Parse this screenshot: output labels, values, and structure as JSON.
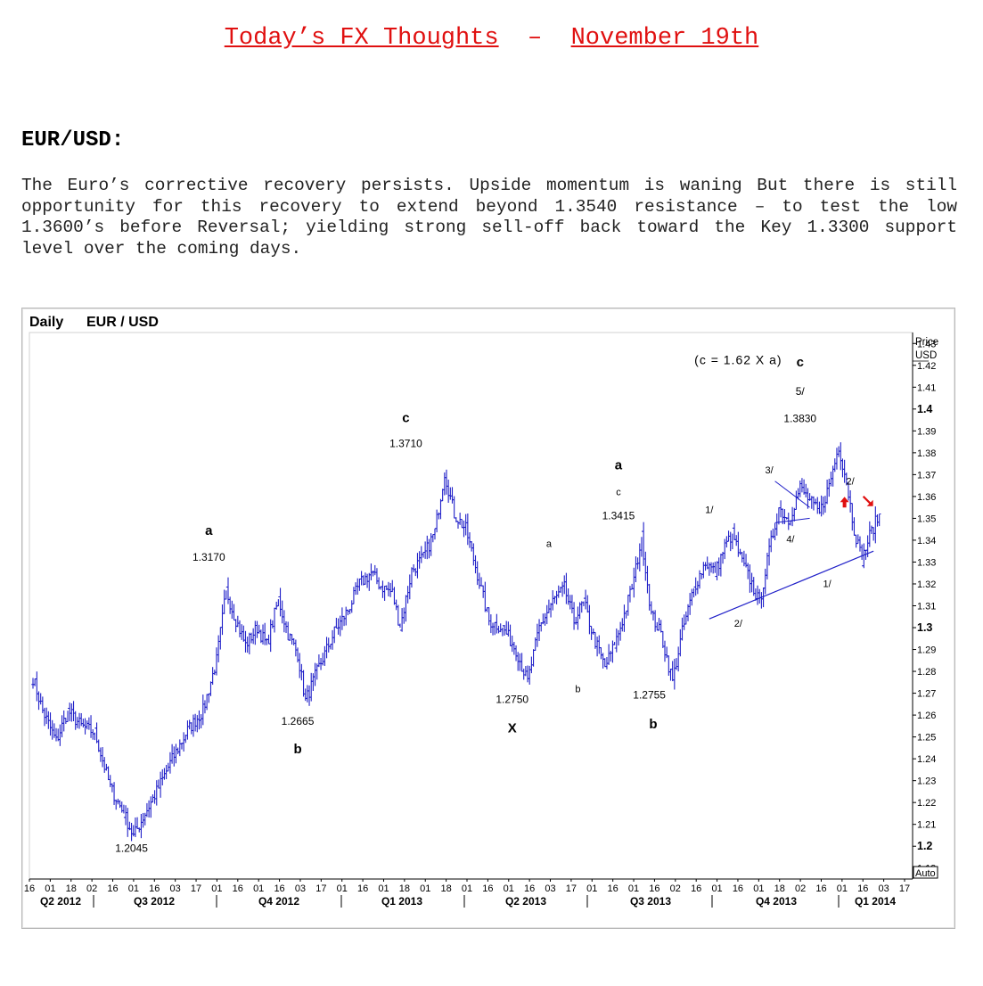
{
  "headline": {
    "left": "Today’s FX Thoughts",
    "separator": "–",
    "right": "November 19th"
  },
  "section_title": "EUR/USD:",
  "commentary": "The Euro’s corrective recovery persists. Upside momentum is waning But there is still opportunity for this recovery to extend beyond 1.3540 resistance – to test the low 1.3600’s before Reversal; yielding strong sell-off back toward the Key 1.3300 support level over the coming days.",
  "colors": {
    "headline": "#e01010",
    "candles": "#1f1fc8",
    "trendline": "#1f1fc8",
    "arrows": "#e01010"
  },
  "chart_data": {
    "type": "line",
    "chart_label": "Daily",
    "title": "EUR / USD",
    "ylabel": "Price USD",
    "y_unit_top": "Price",
    "y_unit_bottom": "USD",
    "scale_mode": "Auto",
    "ylim": [
      1.185,
      1.435
    ],
    "y_ticks": [
      "1.43",
      "1.42",
      "1.41",
      "1.4",
      "1.39",
      "1.38",
      "1.37",
      "1.36",
      "1.35",
      "1.34",
      "1.33",
      "1.32",
      "1.31",
      "1.3",
      "1.29",
      "1.28",
      "1.27",
      "1.26",
      "1.25",
      "1.24",
      "1.23",
      "1.22",
      "1.21",
      "1.2",
      "1.19"
    ],
    "y_ticks_bold": [
      "1.4",
      "1.3",
      "1.2"
    ],
    "x_day_ticks": [
      "16",
      "01",
      "18",
      "02",
      "16",
      "01",
      "16",
      "03",
      "17",
      "01",
      "16",
      "01",
      "16",
      "03",
      "17",
      "01",
      "16",
      "01",
      "18",
      "01",
      "18",
      "01",
      "16",
      "01",
      "16",
      "03",
      "17",
      "01",
      "16",
      "01",
      "16",
      "02",
      "16",
      "01",
      "16",
      "01",
      "18",
      "02",
      "16",
      "01",
      "16",
      "03",
      "17"
    ],
    "x_quarters": [
      "Q2 2012",
      "Q3 2012",
      "Q4 2012",
      "Q1 2013",
      "Q2 2013",
      "Q3 2013",
      "Q4 2013",
      "Q1 2014"
    ],
    "series": [
      {
        "type": "ohlc-bars",
        "pivots": [
          [
            0,
            1.277
          ],
          [
            5,
            1.262
          ],
          [
            12,
            1.248
          ],
          [
            18,
            1.262
          ],
          [
            25,
            1.255
          ],
          [
            32,
            1.252
          ],
          [
            40,
            1.227
          ],
          [
            47,
            1.215
          ],
          [
            52,
            1.2045
          ],
          [
            58,
            1.215
          ],
          [
            64,
            1.225
          ],
          [
            71,
            1.238
          ],
          [
            80,
            1.253
          ],
          [
            88,
            1.262
          ],
          [
            95,
            1.285
          ],
          [
            100,
            1.317
          ],
          [
            104,
            1.306
          ],
          [
            110,
            1.292
          ],
          [
            116,
            1.3
          ],
          [
            121,
            1.292
          ],
          [
            127,
            1.313
          ],
          [
            132,
            1.297
          ],
          [
            137,
            1.288
          ],
          [
            141,
            1.2665
          ],
          [
            148,
            1.282
          ],
          [
            156,
            1.298
          ],
          [
            163,
            1.308
          ],
          [
            169,
            1.32
          ],
          [
            175,
            1.325
          ],
          [
            180,
            1.319
          ],
          [
            186,
            1.316
          ],
          [
            190,
            1.3
          ],
          [
            196,
            1.326
          ],
          [
            202,
            1.332
          ],
          [
            208,
            1.344
          ],
          [
            213,
            1.371
          ],
          [
            218,
            1.352
          ],
          [
            224,
            1.345
          ],
          [
            229,
            1.328
          ],
          [
            236,
            1.303
          ],
          [
            243,
            1.3
          ],
          [
            250,
            1.29
          ],
          [
            256,
            1.275
          ],
          [
            262,
            1.3
          ],
          [
            269,
            1.312
          ],
          [
            275,
            1.318
          ],
          [
            280,
            1.303
          ],
          [
            285,
            1.312
          ],
          [
            290,
            1.296
          ],
          [
            296,
            1.282
          ],
          [
            301,
            1.292
          ],
          [
            306,
            1.306
          ],
          [
            311,
            1.322
          ],
          [
            315,
            1.3415
          ],
          [
            320,
            1.306
          ],
          [
            325,
            1.297
          ],
          [
            331,
            1.2755
          ],
          [
            336,
            1.298
          ],
          [
            342,
            1.318
          ],
          [
            348,
            1.33
          ],
          [
            353,
            1.325
          ],
          [
            358,
            1.337
          ],
          [
            362,
            1.343
          ],
          [
            366,
            1.332
          ],
          [
            372,
            1.32
          ],
          [
            376,
            1.311
          ],
          [
            381,
            1.335
          ],
          [
            386,
            1.355
          ],
          [
            391,
            1.349
          ],
          [
            397,
            1.364
          ],
          [
            402,
            1.358
          ],
          [
            407,
            1.352
          ],
          [
            412,
            1.365
          ],
          [
            417,
            1.383
          ],
          [
            421,
            1.367
          ],
          [
            425,
            1.345
          ],
          [
            429,
            1.331
          ],
          [
            433,
            1.342
          ],
          [
            438,
            1.352
          ]
        ]
      }
    ],
    "trendline": {
      "from": [
        350,
        1.304
      ],
      "to": [
        435,
        1.335
      ]
    },
    "triangle_lines": [
      {
        "from": [
          384,
          1.367
        ],
        "to": [
          402,
          1.355
        ]
      },
      {
        "from": [
          384,
          1.348
        ],
        "to": [
          402,
          1.35
        ]
      }
    ],
    "annotations": [
      {
        "text": "(c = 1.62 X a)",
        "x": 365,
        "y": 1.4205,
        "bold": false,
        "size": 14
      },
      {
        "text": "c",
        "x": 397,
        "y": 1.4195,
        "bold": true,
        "size": 15
      },
      {
        "text": "5/",
        "x": 397,
        "y": 1.4065,
        "bold": false,
        "size": 12
      },
      {
        "text": "1.3830",
        "x": 397,
        "y": 1.394,
        "bold": false,
        "size": 12
      },
      {
        "text": "c",
        "x": 193,
        "y": 1.394,
        "bold": true,
        "size": 15
      },
      {
        "text": "1.3710",
        "x": 193,
        "y": 1.3825,
        "bold": false,
        "size": 12
      },
      {
        "text": "a",
        "x": 91,
        "y": 1.3425,
        "bold": true,
        "size": 15
      },
      {
        "text": "1.3170",
        "x": 91,
        "y": 1.3305,
        "bold": false,
        "size": 12
      },
      {
        "text": "a",
        "x": 303,
        "y": 1.3725,
        "bold": true,
        "size": 15
      },
      {
        "text": "c",
        "x": 303,
        "y": 1.3605,
        "bold": false,
        "size": 11
      },
      {
        "text": "1.3415",
        "x": 303,
        "y": 1.3495,
        "bold": false,
        "size": 12
      },
      {
        "text": "a",
        "x": 267,
        "y": 1.337,
        "bold": false,
        "size": 11
      },
      {
        "text": "b",
        "x": 282,
        "y": 1.2705,
        "bold": false,
        "size": 11
      },
      {
        "text": "1.2750",
        "x": 248,
        "y": 1.2655,
        "bold": false,
        "size": 12
      },
      {
        "text": "X",
        "x": 248,
        "y": 1.252,
        "bold": true,
        "size": 15
      },
      {
        "text": "1.2755",
        "x": 319,
        "y": 1.2675,
        "bold": false,
        "size": 12
      },
      {
        "text": "b",
        "x": 321,
        "y": 1.254,
        "bold": true,
        "size": 15
      },
      {
        "text": "1.2665",
        "x": 137,
        "y": 1.2555,
        "bold": false,
        "size": 12
      },
      {
        "text": "b",
        "x": 137,
        "y": 1.2425,
        "bold": true,
        "size": 15
      },
      {
        "text": "1.2045",
        "x": 51,
        "y": 1.1975,
        "bold": false,
        "size": 12
      },
      {
        "text": "1/",
        "x": 350,
        "y": 1.3525,
        "bold": false,
        "size": 11
      },
      {
        "text": "3/",
        "x": 381,
        "y": 1.3705,
        "bold": false,
        "size": 11
      },
      {
        "text": "4/",
        "x": 392,
        "y": 1.339,
        "bold": false,
        "size": 11
      },
      {
        "text": "2/",
        "x": 365,
        "y": 1.3005,
        "bold": false,
        "size": 11
      },
      {
        "text": "2/",
        "x": 423,
        "y": 1.3655,
        "bold": false,
        "size": 11
      },
      {
        "text": "1/",
        "x": 411,
        "y": 1.3185,
        "bold": false,
        "size": 11
      }
    ],
    "arrows": [
      {
        "direction": "up",
        "x": 420,
        "y": 1.357
      },
      {
        "direction": "down-right",
        "x": 432,
        "y": 1.358
      }
    ],
    "grid": false,
    "legend": "none"
  }
}
